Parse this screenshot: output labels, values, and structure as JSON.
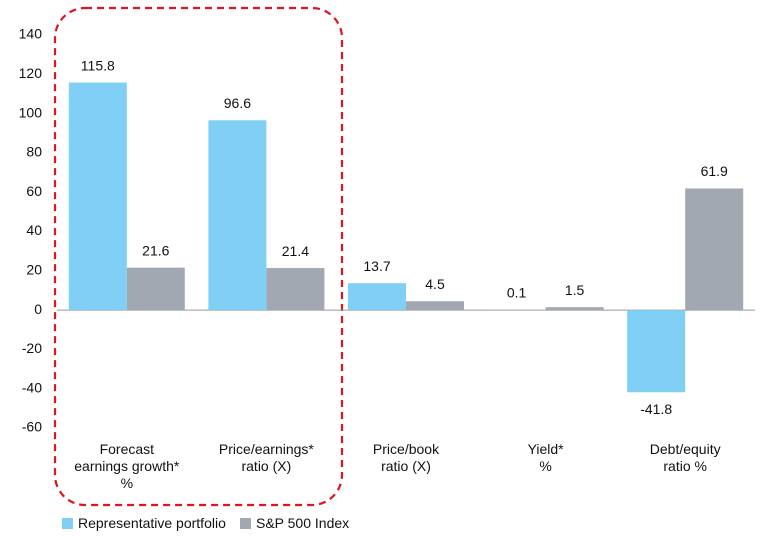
{
  "chart_data": {
    "type": "bar",
    "categories": [
      "Forecast\nearnings growth*\n%",
      "Price/earnings*\nratio (X)",
      "Price/book\nratio (X)",
      "Yield*\n%",
      "Debt/equity\nratio %"
    ],
    "series": [
      {
        "name": "Representative portfolio",
        "color": "#7fd0f4",
        "values": [
          115.8,
          96.6,
          13.7,
          0.1,
          -41.8
        ]
      },
      {
        "name": "S&P 500 Index",
        "color": "#a2a8b2",
        "values": [
          21.6,
          21.4,
          4.5,
          1.5,
          61.9
        ]
      }
    ],
    "ylim": [
      -60,
      140
    ],
    "yticks": [
      -60,
      -40,
      -20,
      0,
      20,
      40,
      60,
      80,
      100,
      120,
      140
    ],
    "grid": false
  }
}
